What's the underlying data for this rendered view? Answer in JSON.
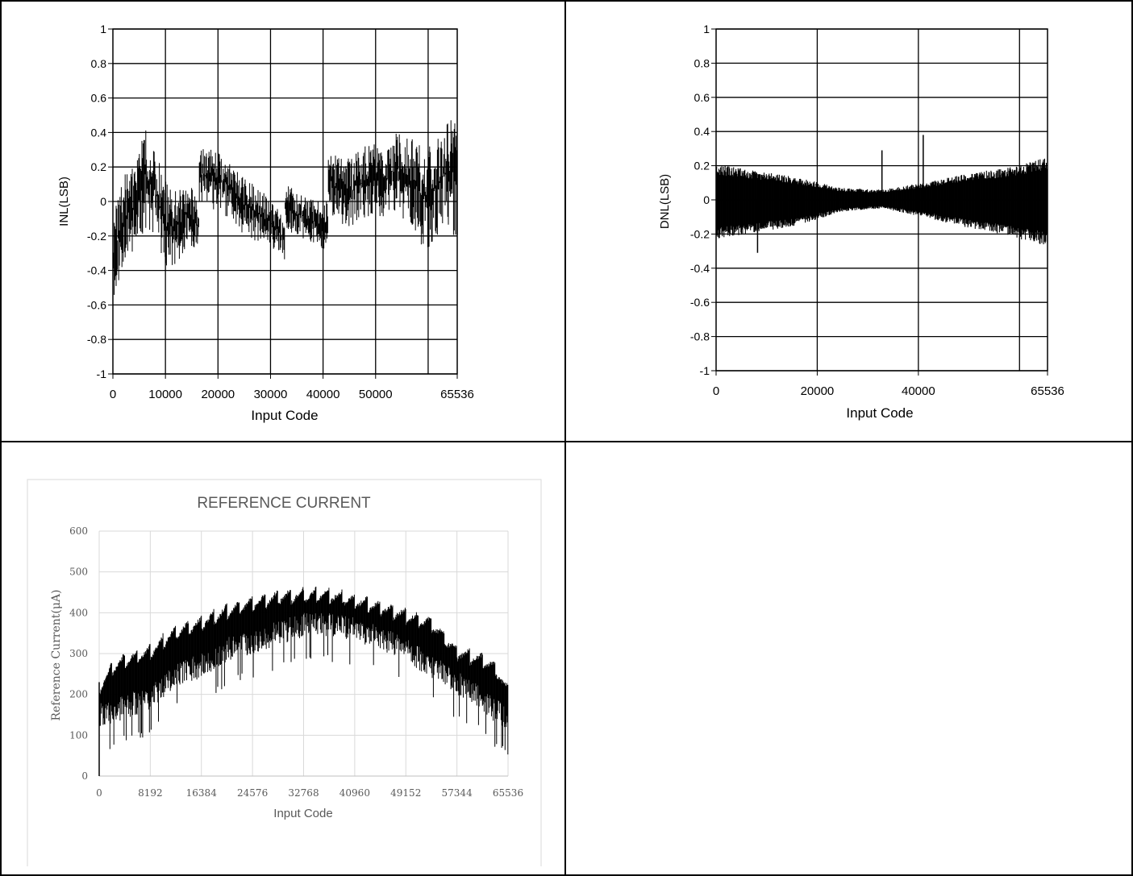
{
  "charts": {
    "inl": {
      "ylabel": "INL(LSB)",
      "xlabel": "Input Code",
      "xticks": [
        "0",
        "10000",
        "20000",
        "30000",
        "40000",
        "50000",
        "65536"
      ],
      "yticks": [
        "-1",
        "-0.8",
        "-0.6",
        "-0.4",
        "-0.2",
        "0",
        "0.2",
        "0.4",
        "0.6",
        "0.8",
        "1"
      ]
    },
    "dnl": {
      "ylabel": "DNL(LSB)",
      "xlabel": "Input Code",
      "xticks": [
        "0",
        "20000",
        "40000",
        "65536"
      ],
      "yticks": [
        "-1",
        "-0.8",
        "-0.6",
        "-0.4",
        "-0.2",
        "0",
        "0.2",
        "0.4",
        "0.6",
        "0.8",
        "1"
      ]
    },
    "ref": {
      "title": "REFERENCE CURRENT",
      "ylabel": "Reference Current(μA)",
      "xlabel": "Input Code",
      "xticks": [
        "0",
        "8192",
        "16384",
        "24576",
        "32768",
        "40960",
        "49152",
        "57344",
        "65536"
      ],
      "yticks": [
        "0",
        "100",
        "200",
        "300",
        "400",
        "500",
        "600"
      ]
    }
  },
  "chart_data": [
    {
      "type": "line",
      "title": "",
      "xlabel": "Input Code",
      "ylabel": "INL(LSB)",
      "xlim": [
        0,
        65536
      ],
      "ylim": [
        -1,
        1
      ],
      "grid": true,
      "series": [
        {
          "x": [
            0,
            2048,
            4096,
            6144,
            8192,
            10240,
            12288,
            14336,
            16383,
            16384,
            18432,
            20480,
            22528,
            24576,
            26624,
            28672,
            30720,
            32767,
            32768,
            34816,
            36864,
            38912,
            40959,
            40960,
            43008,
            45056,
            47104,
            49152,
            51200,
            53248,
            55296,
            57344,
            59392,
            61440,
            63488,
            65535
          ],
          "y": [
            -0.3,
            -0.05,
            0.05,
            0.18,
            0.12,
            -0.05,
            -0.1,
            -0.02,
            -0.15,
            0.18,
            0.15,
            0.1,
            0.08,
            0.0,
            -0.05,
            -0.1,
            -0.15,
            -0.22,
            0.05,
            -0.05,
            -0.08,
            -0.1,
            -0.15,
            0.2,
            0.08,
            0.05,
            0.1,
            0.12,
            0.08,
            0.15,
            0.18,
            0.12,
            0.05,
            0.1,
            0.15,
            0.1
          ]
        },
        {
          "x": [
            0,
            2048,
            4096,
            6144,
            8192,
            10240,
            12288,
            14336,
            16383,
            16384,
            18432,
            20480,
            22528,
            24576,
            26624,
            28672,
            30720,
            32767,
            32768,
            34816,
            36864,
            38912,
            40959,
            40960,
            43008,
            45056,
            47104,
            49152,
            51200,
            53248,
            55296,
            57344,
            59392,
            61440,
            63488,
            65535
          ],
          "y": [
            -0.6,
            -0.35,
            -0.3,
            -0.15,
            -0.2,
            -0.4,
            -0.35,
            -0.25,
            -0.3,
            0.0,
            -0.05,
            -0.05,
            -0.12,
            -0.18,
            -0.22,
            -0.25,
            -0.28,
            -0.35,
            -0.15,
            -0.2,
            -0.22,
            -0.25,
            -0.3,
            -0.05,
            -0.12,
            -0.15,
            -0.1,
            -0.08,
            -0.1,
            -0.05,
            -0.1,
            -0.15,
            -0.3,
            -0.2,
            -0.15,
            -0.25
          ]
        },
        {
          "x": [
            0,
            2048,
            4096,
            6144,
            8192,
            10240,
            12288,
            14336,
            16383,
            16384,
            18432,
            20480,
            22528,
            24576,
            26624,
            28672,
            30720,
            32767,
            32768,
            34816,
            36864,
            38912,
            40959,
            40960,
            43008,
            45056,
            47104,
            49152,
            51200,
            53248,
            55296,
            57344,
            59392,
            61440,
            63488,
            65535
          ],
          "y": [
            -0.1,
            0.15,
            0.2,
            0.42,
            0.28,
            0.1,
            0.05,
            0.12,
            0.0,
            0.3,
            0.33,
            0.28,
            0.25,
            0.15,
            0.1,
            0.05,
            -0.02,
            -0.1,
            0.12,
            0.05,
            0.02,
            0.0,
            0.0,
            0.3,
            0.25,
            0.25,
            0.3,
            0.35,
            0.28,
            0.38,
            0.42,
            0.35,
            0.3,
            0.35,
            0.45,
            0.5
          ]
        }
      ]
    },
    {
      "type": "line",
      "title": "",
      "xlabel": "Input Code",
      "ylabel": "DNL(LSB)",
      "xlim": [
        0,
        65536
      ],
      "ylim": [
        -1,
        1
      ],
      "grid": true,
      "series": [
        {
          "x": [
            0,
            8192,
            16384,
            24576,
            32768,
            40960,
            49152,
            57344,
            65535
          ],
          "y": [
            0.21,
            0.17,
            0.13,
            0.07,
            0.06,
            0.1,
            0.15,
            0.19,
            0.25
          ]
        },
        {
          "x": [
            0,
            8192,
            16384,
            24576,
            32768,
            40960,
            49152,
            57344,
            65535
          ],
          "y": [
            -0.23,
            -0.19,
            -0.15,
            -0.07,
            -0.05,
            -0.1,
            -0.16,
            -0.21,
            -0.27
          ]
        }
      ]
    },
    {
      "type": "line",
      "title": "REFERENCE CURRENT",
      "xlabel": "Input Code",
      "ylabel": "Reference Current(μA)",
      "xlim": [
        0,
        65536
      ],
      "ylim": [
        0,
        600
      ],
      "grid": true,
      "series": [
        {
          "x": [
            0,
            2048,
            4096,
            8192,
            12288,
            16384,
            20480,
            24576,
            28672,
            32768,
            36864,
            40960,
            45056,
            49152,
            53248,
            57344,
            61440,
            63488,
            65535
          ],
          "y": [
            230,
            280,
            300,
            320,
            370,
            390,
            420,
            440,
            455,
            460,
            460,
            445,
            430,
            410,
            390,
            320,
            300,
            280,
            220
          ]
        },
        {
          "x": [
            0,
            2048,
            4096,
            8192,
            12288,
            16384,
            20480,
            24576,
            28672,
            32768,
            36864,
            40960,
            45056,
            49152,
            53248,
            57344,
            61440,
            63488,
            65535
          ],
          "y": [
            80,
            80,
            100,
            120,
            180,
            200,
            240,
            260,
            280,
            300,
            300,
            290,
            270,
            240,
            200,
            160,
            120,
            90,
            70
          ]
        }
      ]
    }
  ]
}
